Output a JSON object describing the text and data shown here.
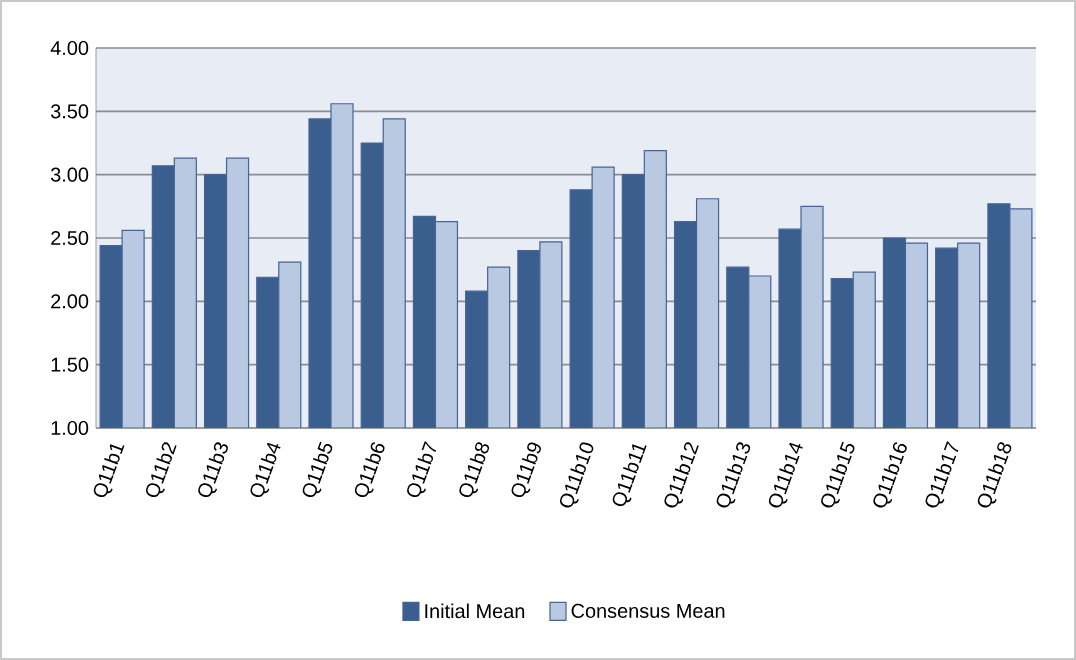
{
  "chart_data": {
    "type": "bar",
    "categories": [
      "Q11b1",
      "Q11b2",
      "Q11b3",
      "Q11b4",
      "Q11b5",
      "Q11b6",
      "Q11b7",
      "Q11b8",
      "Q11b9",
      "Q11b10",
      "Q11b11",
      "Q11b12",
      "Q11b13",
      "Q11b14",
      "Q11b15",
      "Q11b16",
      "Q11b17",
      "Q11b18"
    ],
    "series": [
      {
        "name": "Initial Mean",
        "color": "#3a5f8f",
        "values": [
          2.44,
          3.07,
          3.0,
          2.19,
          3.44,
          3.25,
          2.67,
          2.08,
          2.4,
          2.88,
          3.0,
          2.63,
          2.27,
          2.57,
          2.18,
          2.5,
          2.42,
          2.77
        ]
      },
      {
        "name": "Consensus Mean",
        "color": "#b9c9e1",
        "values": [
          2.56,
          3.13,
          3.13,
          2.31,
          3.56,
          3.44,
          2.63,
          2.27,
          2.47,
          3.06,
          3.19,
          2.81,
          2.2,
          2.75,
          2.23,
          2.46,
          2.46,
          2.73
        ]
      }
    ],
    "ylim": [
      1,
      4
    ],
    "yticks": [
      {
        "value": 1,
        "label": "1.00"
      },
      {
        "value": 1.5,
        "label": "1.50"
      },
      {
        "value": 2,
        "label": "2.00"
      },
      {
        "value": 2.5,
        "label": "2.50"
      },
      {
        "value": 3,
        "label": "3.00"
      },
      {
        "value": 3.5,
        "label": "3.50"
      },
      {
        "value": 4,
        "label": "4.00"
      }
    ],
    "grid": "y",
    "legend": "bottom"
  }
}
